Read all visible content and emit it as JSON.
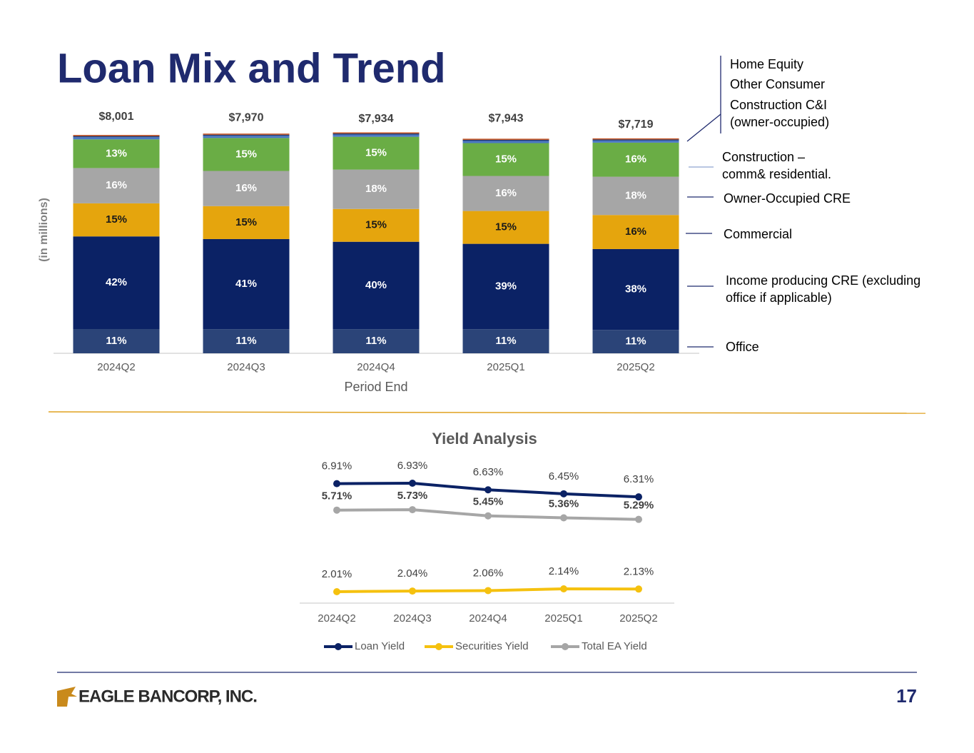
{
  "header": {
    "title": "Loan Mix and Trend"
  },
  "chart_data": [
    {
      "type": "stacked-bar",
      "y_label": "(in millions)",
      "x_label": "Period End",
      "categories": [
        "2024Q2",
        "2024Q3",
        "2024Q4",
        "2025Q1",
        "2025Q2"
      ],
      "totals": {
        "values": [
          8001,
          7970,
          7934,
          7943,
          7719
        ],
        "value_labels": [
          "$8,001",
          "$7,970",
          "$7,934",
          "$7,943",
          "$7,719"
        ]
      },
      "series": [
        {
          "name": "Office",
          "color": "#2b4478",
          "values": [
            11,
            11,
            11,
            11,
            11
          ],
          "value_labels": [
            "11%",
            "11%",
            "11%",
            "11%",
            "11%"
          ]
        },
        {
          "name": "Income producing CRE (excluding office if applicable)",
          "color": "#0b2265",
          "values": [
            42,
            41,
            40,
            39,
            38
          ],
          "value_labels": [
            "42%",
            "41%",
            "40%",
            "39%",
            "38%"
          ]
        },
        {
          "name": "Commercial",
          "color": "#e5a50d",
          "values": [
            15,
            15,
            15,
            15,
            16
          ],
          "value_labels": [
            "15%",
            "15%",
            "15%",
            "15%",
            "16%"
          ]
        },
        {
          "name": "Owner-Occupied CRE",
          "color": "#a6a6a6",
          "values": [
            16,
            16,
            18,
            16,
            18
          ],
          "value_labels": [
            "16%",
            "16%",
            "18%",
            "16%",
            "18%"
          ]
        },
        {
          "name": "Construction – comm& residential.",
          "color": "#6aad45",
          "values": [
            13,
            15,
            15,
            15,
            16
          ],
          "value_labels": [
            "13%",
            "15%",
            "15%",
            "15%",
            "16%"
          ]
        },
        {
          "name": "Construction C&I (owner-occupied)",
          "color": "#4a78c2",
          "values": [
            1,
            1,
            1,
            1,
            1
          ]
        },
        {
          "name": "Other Consumer",
          "color": "#1f3a73",
          "values": [
            0.5,
            0.5,
            0.5,
            0.5,
            0.5
          ]
        },
        {
          "name": "Home Equity",
          "color": "#c5501d",
          "values": [
            0.5,
            0.5,
            0.5,
            0.5,
            0.5
          ]
        }
      ]
    },
    {
      "type": "line",
      "title": "Yield Analysis",
      "categories": [
        "2024Q2",
        "2024Q3",
        "2024Q4",
        "2025Q1",
        "2025Q2"
      ],
      "series": [
        {
          "name": "Loan Yield",
          "color": "#0b2265",
          "values": [
            6.91,
            6.93,
            6.63,
            6.45,
            6.31
          ],
          "value_labels": [
            "6.91%",
            "6.93%",
            "6.63%",
            "6.45%",
            "6.31%"
          ]
        },
        {
          "name": "Securities Yield",
          "color": "#f5c10f",
          "values": [
            2.01,
            2.04,
            2.06,
            2.14,
            2.13
          ],
          "value_labels": [
            "2.01%",
            "2.04%",
            "2.06%",
            "2.14%",
            "2.13%"
          ]
        },
        {
          "name": "Total EA Yield",
          "color": "#a6a6a6",
          "values": [
            5.71,
            5.73,
            5.45,
            5.36,
            5.29
          ],
          "value_labels": [
            "5.71%",
            "5.73%",
            "5.45%",
            "5.36%",
            "5.29%"
          ]
        }
      ]
    }
  ],
  "footer": {
    "logo": "EAGLE BANCORP, INC.",
    "page_number": "17"
  }
}
